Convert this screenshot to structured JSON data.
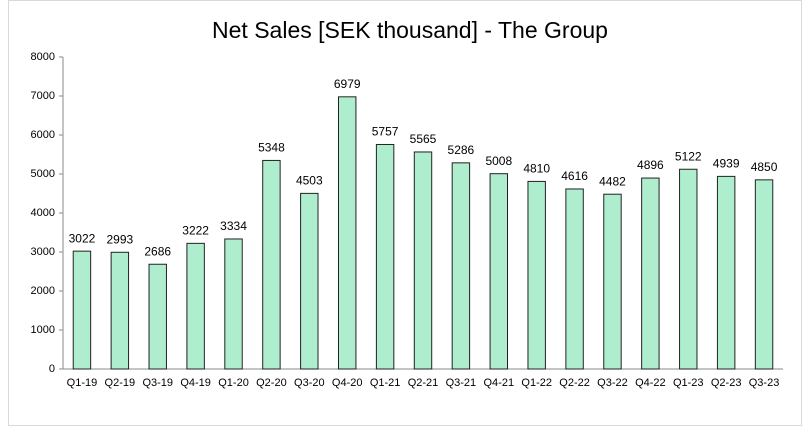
{
  "chart_data": {
    "type": "bar",
    "title": "Net Sales [SEK thousand] - The Group",
    "categories": [
      "Q1-19",
      "Q2-19",
      "Q3-19",
      "Q4-19",
      "Q1-20",
      "Q2-20",
      "Q3-20",
      "Q4-20",
      "Q1-21",
      "Q2-21",
      "Q3-21",
      "Q4-21",
      "Q1-22",
      "Q2-22",
      "Q3-22",
      "Q4-22",
      "Q1-23",
      "Q2-23",
      "Q3-23"
    ],
    "values": [
      3022,
      2993,
      2686,
      3222,
      3334,
      5348,
      4503,
      6979,
      5757,
      5565,
      5286,
      5008,
      4810,
      4616,
      4482,
      4896,
      5122,
      4939,
      4850
    ],
    "color": "#aeedce",
    "ylim": [
      0,
      8000
    ],
    "yticks": [
      0,
      1000,
      2000,
      3000,
      4000,
      5000,
      6000,
      7000,
      8000
    ],
    "grid": false
  }
}
